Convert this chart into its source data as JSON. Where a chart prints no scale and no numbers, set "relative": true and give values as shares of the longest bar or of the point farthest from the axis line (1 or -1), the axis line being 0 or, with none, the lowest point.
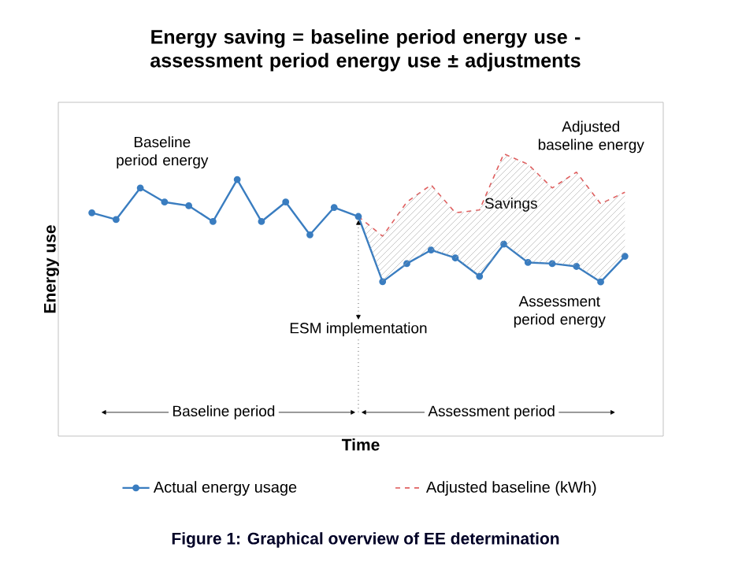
{
  "chart_data": {
    "type": "line",
    "title": "Energy saving = baseline period energy use - assessment period energy use ± adjustments",
    "xlabel": "Time",
    "ylabel": "Energy use",
    "relative": true,
    "legend": "bottom",
    "categories": [
      null,
      null,
      null,
      null,
      null,
      null,
      null,
      null,
      null,
      null,
      null,
      null,
      null,
      null,
      null,
      null,
      null,
      null,
      null,
      null,
      null,
      null,
      null
    ],
    "series": [
      {
        "name": "Actual energy usage",
        "color": "#3a7dc0",
        "marker": "circle",
        "line_style": "solid",
        "values": [
          0.791,
          0.767,
          0.879,
          0.829,
          0.816,
          0.76,
          0.909,
          0.76,
          0.829,
          0.713,
          0.81,
          0.778,
          0.547,
          0.611,
          0.659,
          0.631,
          0.566,
          0.68,
          0.615,
          0.611,
          0.601,
          0.546,
          0.637
        ]
      },
      {
        "name": "Adjusted baseline (kWh)",
        "color": "#e06060",
        "line_style": "dashed",
        "values": [
          null,
          null,
          null,
          null,
          null,
          null,
          null,
          null,
          null,
          null,
          null,
          0.778,
          0.708,
          0.829,
          0.89,
          0.791,
          0.801,
          1.0,
          0.963,
          0.879,
          0.935,
          0.823,
          0.864
        ]
      }
    ],
    "annotations": [
      "ESM implementation",
      "Baseline period energy",
      "Adjusted baseline energy",
      "Savings",
      "Assessment period energy",
      "Baseline period",
      "Assessment period",
      "Figure 1: Graphical overview of EE determination"
    ]
  }
}
